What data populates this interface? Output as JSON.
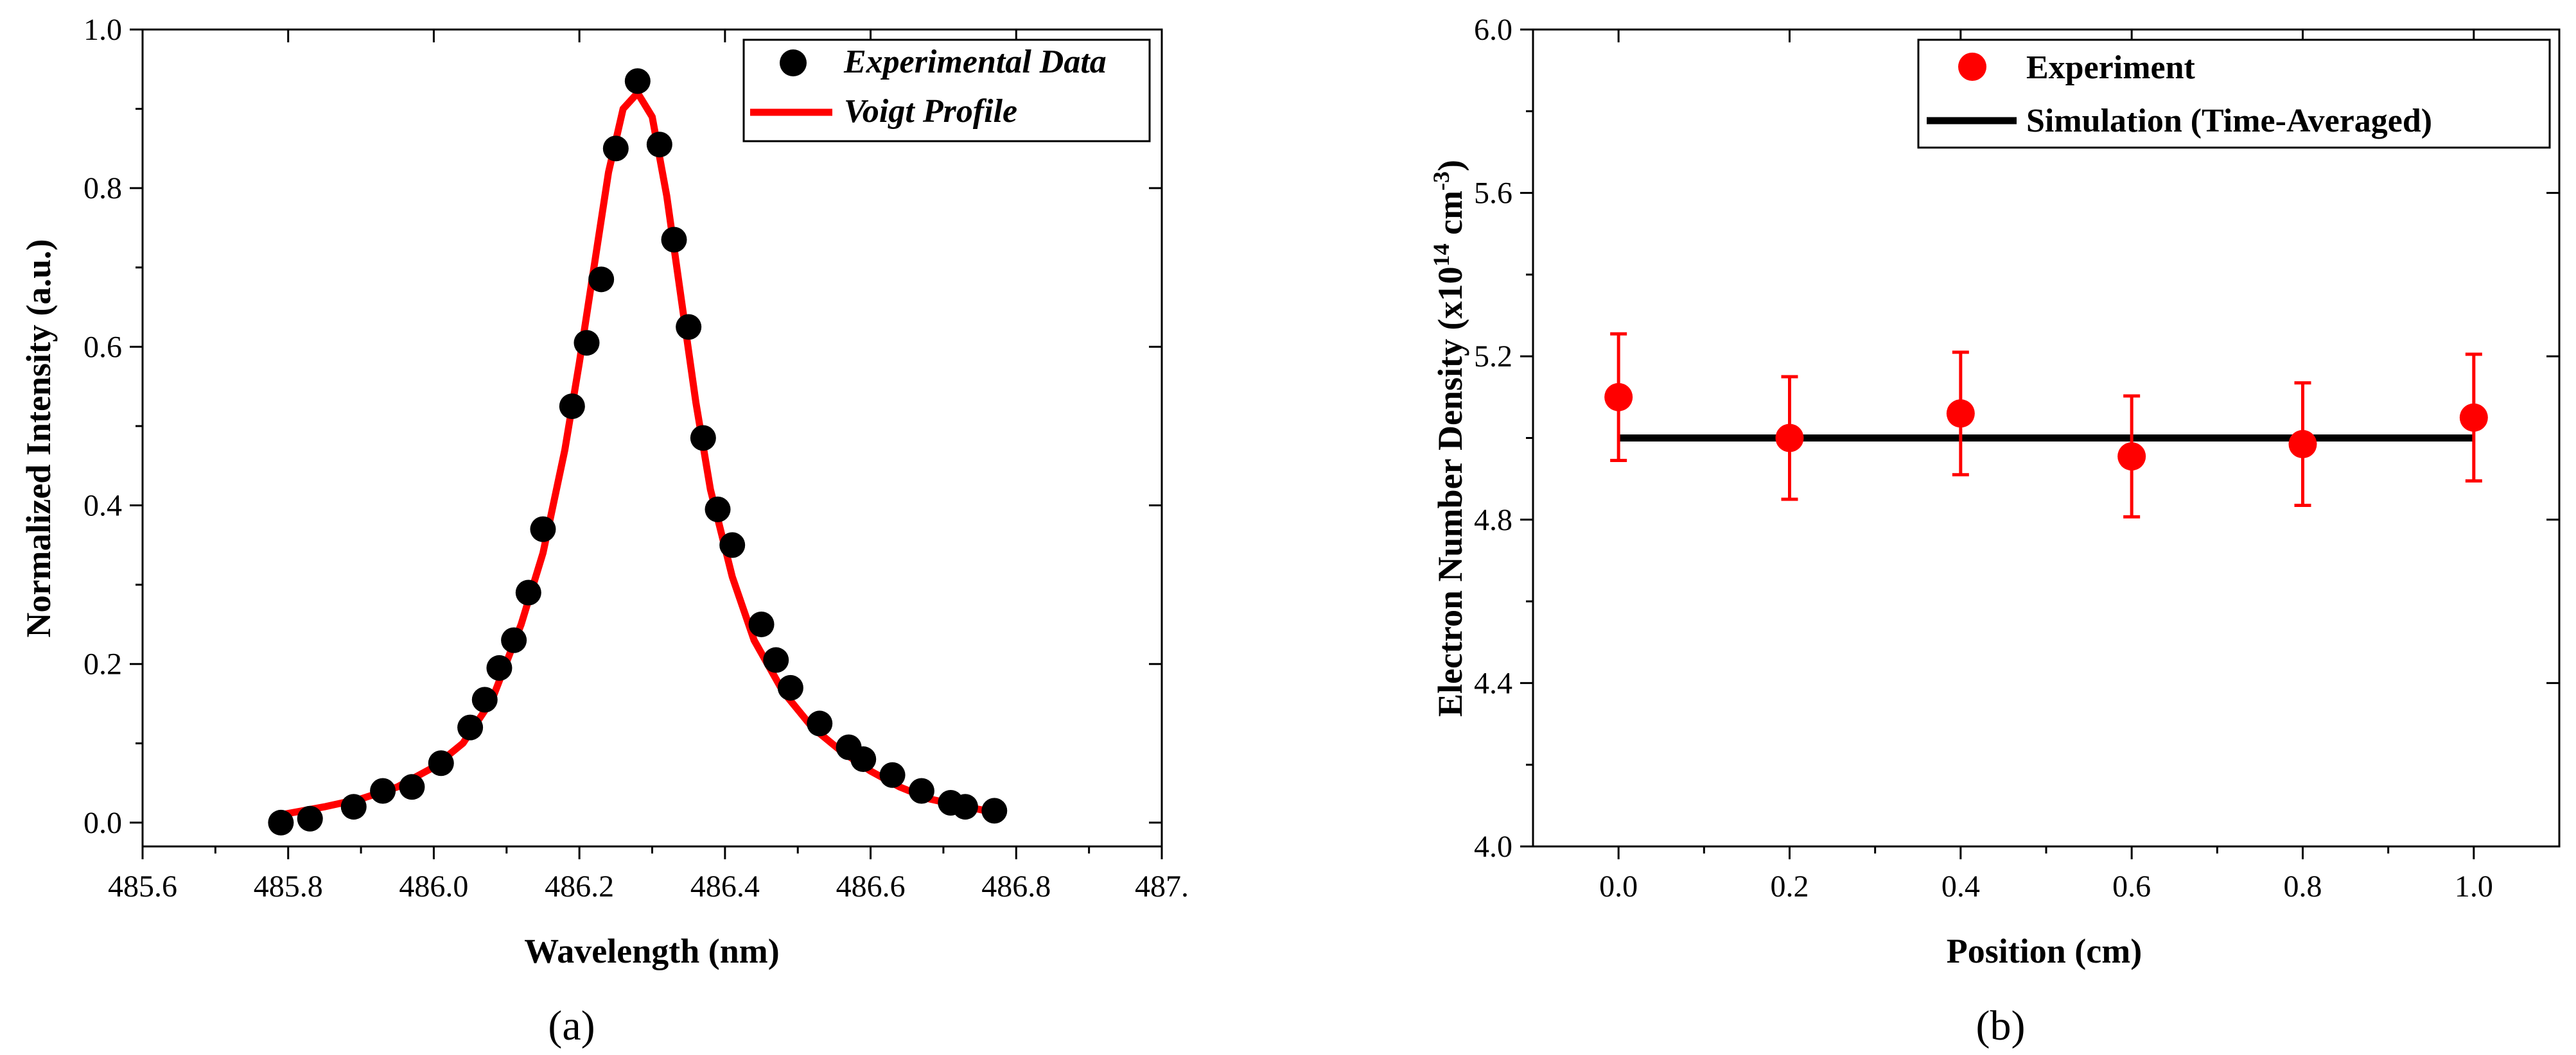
{
  "chart_data": [
    {
      "type": "scatter",
      "panel_label": "(a)",
      "xlabel": "Wavelength (nm)",
      "ylabel": "Normalized Intensity (a.u.)",
      "xlim": [
        485.6,
        487.0
      ],
      "ylim": [
        -0.03,
        1.0
      ],
      "xticks": [
        485.6,
        485.8,
        486.0,
        486.2,
        486.4,
        486.6,
        486.8,
        487.0
      ],
      "xtick_labels": [
        "485.6",
        "485.8",
        "486.0",
        "486.2",
        "486.4",
        "486.6",
        "486.8",
        "487."
      ],
      "yticks": [
        0.0,
        0.2,
        0.4,
        0.6,
        0.8,
        1.0
      ],
      "ytick_labels": [
        "0.0",
        "0.2",
        "0.4",
        "0.6",
        "0.8",
        "1.0"
      ],
      "legend_position": "top-right",
      "series": [
        {
          "name": "Experimental Data",
          "kind": "points",
          "color": "#000000",
          "x": [
            485.79,
            485.83,
            485.89,
            485.93,
            485.97,
            486.01,
            486.05,
            486.07,
            486.09,
            486.11,
            486.13,
            486.15,
            486.19,
            486.21,
            486.23,
            486.25,
            486.28,
            486.31,
            486.33,
            486.35,
            486.37,
            486.39,
            486.41,
            486.45,
            486.47,
            486.49,
            486.53,
            486.57,
            486.59,
            486.63,
            486.67,
            486.71,
            486.73,
            486.77
          ],
          "y": [
            0.0,
            0.005,
            0.02,
            0.04,
            0.045,
            0.075,
            0.12,
            0.155,
            0.195,
            0.23,
            0.29,
            0.37,
            0.525,
            0.605,
            0.685,
            0.85,
            0.935,
            0.855,
            0.735,
            0.625,
            0.485,
            0.395,
            0.35,
            0.25,
            0.205,
            0.17,
            0.125,
            0.095,
            0.08,
            0.06,
            0.04,
            0.025,
            0.02,
            0.015
          ]
        },
        {
          "name": "Voigt Profile",
          "kind": "line",
          "color": "#ff0000",
          "x": [
            485.79,
            485.85,
            485.9,
            485.95,
            486.0,
            486.04,
            486.08,
            486.12,
            486.15,
            486.18,
            486.2,
            486.22,
            486.24,
            486.26,
            486.28,
            486.3,
            486.32,
            486.34,
            486.36,
            486.38,
            486.41,
            486.44,
            486.48,
            486.52,
            486.56,
            486.6,
            486.64,
            486.68,
            486.72,
            486.77
          ],
          "y": [
            0.01,
            0.02,
            0.03,
            0.045,
            0.07,
            0.1,
            0.155,
            0.25,
            0.34,
            0.47,
            0.58,
            0.7,
            0.82,
            0.9,
            0.92,
            0.89,
            0.79,
            0.66,
            0.53,
            0.42,
            0.31,
            0.23,
            0.165,
            0.12,
            0.09,
            0.065,
            0.045,
            0.03,
            0.022,
            0.013
          ]
        }
      ]
    },
    {
      "type": "scatter",
      "panel_label": "(b)",
      "xlabel": "Position (cm)",
      "ylabel_main": "Electron Number Density (x10",
      "ylabel_exp1": "14",
      "ylabel_mid": " cm",
      "ylabel_exp2": "-3",
      "ylabel_end": ")",
      "xlim": [
        -0.1,
        1.1
      ],
      "ylim": [
        4.0,
        6.0
      ],
      "xticks": [
        0.0,
        0.2,
        0.4,
        0.6,
        0.8,
        1.0
      ],
      "xtick_labels": [
        "0.0",
        "0.2",
        "0.4",
        "0.6",
        "0.8",
        "1.0"
      ],
      "yticks": [
        4.0,
        4.4,
        4.8,
        5.2,
        5.6,
        6.0
      ],
      "ytick_labels": [
        "4.0",
        "4.4",
        "4.8",
        "5.2",
        "5.6",
        "6.0"
      ],
      "legend_position": "top-right",
      "series": [
        {
          "name": "Experiment",
          "kind": "points_with_error",
          "color": "#ff0000",
          "x": [
            0.0,
            0.2,
            0.4,
            0.6,
            0.8,
            1.0
          ],
          "y": [
            5.1,
            5.0,
            5.06,
            4.955,
            4.985,
            5.05
          ],
          "error": [
            0.155,
            0.15,
            0.15,
            0.148,
            0.15,
            0.155
          ]
        },
        {
          "name": "Simulation (Time-Averaged)",
          "kind": "line",
          "color": "#000000",
          "x": [
            0.0,
            1.0
          ],
          "y": [
            5.0,
            5.0
          ]
        }
      ]
    }
  ]
}
